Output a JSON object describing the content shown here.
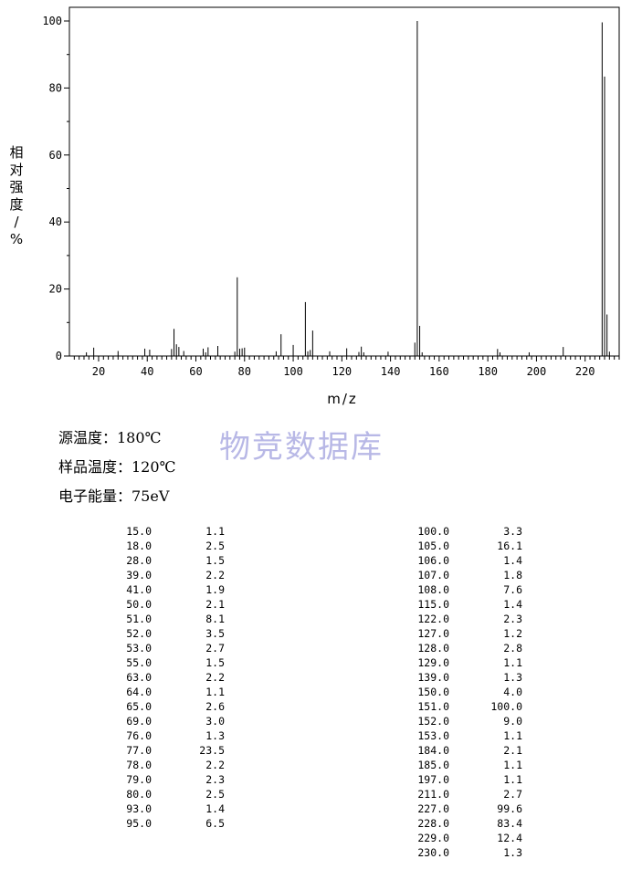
{
  "chart_data": {
    "type": "bar",
    "xlabel": "m/z",
    "ylabel": "相对强度/%",
    "xlim": [
      8,
      234
    ],
    "ylim": [
      0,
      100
    ],
    "x_ticks": [
      20,
      40,
      60,
      80,
      100,
      120,
      140,
      160,
      180,
      200,
      220
    ],
    "x_tick_labels": [
      "20",
      "40",
      "60",
      "80",
      "100",
      "120",
      "140",
      "160",
      "180",
      "200",
      "220"
    ],
    "y_ticks": [
      0,
      20,
      40,
      60,
      80,
      100
    ],
    "y_tick_labels": [
      "0",
      "20",
      "40",
      "60",
      "80",
      "100"
    ],
    "grid": false,
    "peaks": [
      {
        "mz": 15.0,
        "intensity": 1.1
      },
      {
        "mz": 18.0,
        "intensity": 2.5
      },
      {
        "mz": 28.0,
        "intensity": 1.5
      },
      {
        "mz": 39.0,
        "intensity": 2.2
      },
      {
        "mz": 41.0,
        "intensity": 1.9
      },
      {
        "mz": 50.0,
        "intensity": 2.1
      },
      {
        "mz": 51.0,
        "intensity": 8.1
      },
      {
        "mz": 52.0,
        "intensity": 3.5
      },
      {
        "mz": 53.0,
        "intensity": 2.7
      },
      {
        "mz": 55.0,
        "intensity": 1.5
      },
      {
        "mz": 63.0,
        "intensity": 2.2
      },
      {
        "mz": 64.0,
        "intensity": 1.1
      },
      {
        "mz": 65.0,
        "intensity": 2.6
      },
      {
        "mz": 69.0,
        "intensity": 3.0
      },
      {
        "mz": 76.0,
        "intensity": 1.3
      },
      {
        "mz": 77.0,
        "intensity": 23.5
      },
      {
        "mz": 78.0,
        "intensity": 2.2
      },
      {
        "mz": 79.0,
        "intensity": 2.3
      },
      {
        "mz": 80.0,
        "intensity": 2.5
      },
      {
        "mz": 93.0,
        "intensity": 1.4
      },
      {
        "mz": 95.0,
        "intensity": 6.5
      },
      {
        "mz": 100.0,
        "intensity": 3.3
      },
      {
        "mz": 105.0,
        "intensity": 16.1
      },
      {
        "mz": 106.0,
        "intensity": 1.4
      },
      {
        "mz": 107.0,
        "intensity": 1.8
      },
      {
        "mz": 108.0,
        "intensity": 7.6
      },
      {
        "mz": 115.0,
        "intensity": 1.4
      },
      {
        "mz": 122.0,
        "intensity": 2.3
      },
      {
        "mz": 127.0,
        "intensity": 1.2
      },
      {
        "mz": 128.0,
        "intensity": 2.8
      },
      {
        "mz": 129.0,
        "intensity": 1.1
      },
      {
        "mz": 139.0,
        "intensity": 1.3
      },
      {
        "mz": 150.0,
        "intensity": 4.0
      },
      {
        "mz": 151.0,
        "intensity": 100.0
      },
      {
        "mz": 152.0,
        "intensity": 9.0
      },
      {
        "mz": 153.0,
        "intensity": 1.1
      },
      {
        "mz": 184.0,
        "intensity": 2.1
      },
      {
        "mz": 185.0,
        "intensity": 1.1
      },
      {
        "mz": 197.0,
        "intensity": 1.1
      },
      {
        "mz": 211.0,
        "intensity": 2.7
      },
      {
        "mz": 227.0,
        "intensity": 99.6
      },
      {
        "mz": 228.0,
        "intensity": 83.4
      },
      {
        "mz": 229.0,
        "intensity": 12.4
      },
      {
        "mz": 230.0,
        "intensity": 1.3
      }
    ]
  },
  "conditions": {
    "source_temp": "源温度：180℃",
    "sample_temp": "样品温度：120℃",
    "electron_energy": "电子能量：75eV"
  },
  "watermark": "物竞数据库",
  "peak_table": {
    "left": [
      [
        "15.0",
        "1.1"
      ],
      [
        "18.0",
        "2.5"
      ],
      [
        "28.0",
        "1.5"
      ],
      [
        "39.0",
        "2.2"
      ],
      [
        "41.0",
        "1.9"
      ],
      [
        "50.0",
        "2.1"
      ],
      [
        "51.0",
        "8.1"
      ],
      [
        "52.0",
        "3.5"
      ],
      [
        "53.0",
        "2.7"
      ],
      [
        "55.0",
        "1.5"
      ],
      [
        "63.0",
        "2.2"
      ],
      [
        "64.0",
        "1.1"
      ],
      [
        "65.0",
        "2.6"
      ],
      [
        "69.0",
        "3.0"
      ],
      [
        "76.0",
        "1.3"
      ],
      [
        "77.0",
        "23.5"
      ],
      [
        "78.0",
        "2.2"
      ],
      [
        "79.0",
        "2.3"
      ],
      [
        "80.0",
        "2.5"
      ],
      [
        "93.0",
        "1.4"
      ],
      [
        "95.0",
        "6.5"
      ]
    ],
    "right": [
      [
        "100.0",
        "3.3"
      ],
      [
        "105.0",
        "16.1"
      ],
      [
        "106.0",
        "1.4"
      ],
      [
        "107.0",
        "1.8"
      ],
      [
        "108.0",
        "7.6"
      ],
      [
        "115.0",
        "1.4"
      ],
      [
        "122.0",
        "2.3"
      ],
      [
        "127.0",
        "1.2"
      ],
      [
        "128.0",
        "2.8"
      ],
      [
        "129.0",
        "1.1"
      ],
      [
        "139.0",
        "1.3"
      ],
      [
        "150.0",
        "4.0"
      ],
      [
        "151.0",
        "100.0"
      ],
      [
        "152.0",
        "9.0"
      ],
      [
        "153.0",
        "1.1"
      ],
      [
        "184.0",
        "2.1"
      ],
      [
        "185.0",
        "1.1"
      ],
      [
        "197.0",
        "1.1"
      ],
      [
        "211.0",
        "2.7"
      ],
      [
        "227.0",
        "99.6"
      ],
      [
        "228.0",
        "83.4"
      ],
      [
        "229.0",
        "12.4"
      ],
      [
        "230.0",
        "1.3"
      ]
    ]
  }
}
